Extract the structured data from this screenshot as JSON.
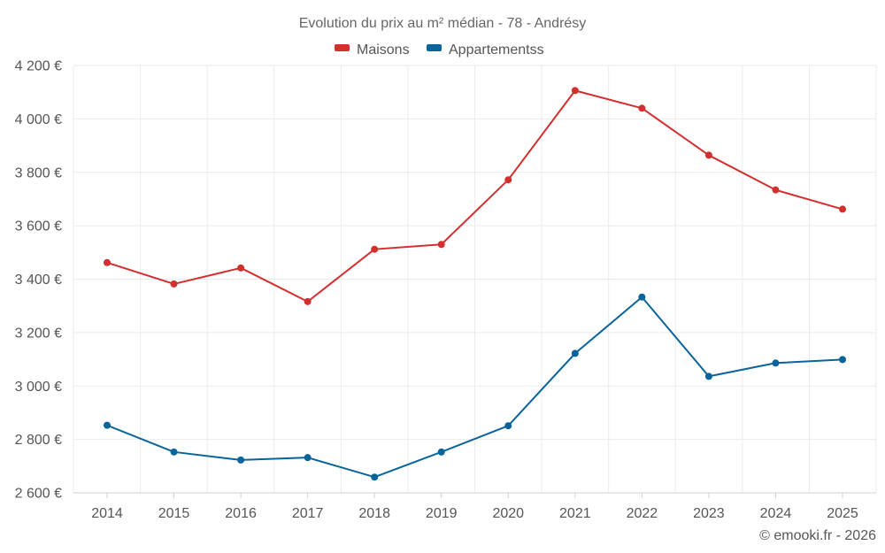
{
  "chart_data": {
    "type": "line",
    "title": "Evolution du prix au m² médian - 78 - Andrésy",
    "categories": [
      "2014",
      "2015",
      "2016",
      "2017",
      "2018",
      "2019",
      "2020",
      "2021",
      "2022",
      "2023",
      "2024",
      "2025"
    ],
    "series": [
      {
        "name": "Maisons",
        "color": "#d32f2f",
        "values": [
          3462,
          3382,
          3442,
          3316,
          3512,
          3530,
          3772,
          4106,
          4040,
          3864,
          3734,
          3662
        ]
      },
      {
        "name": "Appartementss",
        "color": "#08649a",
        "values": [
          2853,
          2753,
          2723,
          2732,
          2659,
          2753,
          2851,
          3122,
          3333,
          3036,
          3086,
          3099
        ]
      }
    ],
    "ylim": [
      2600,
      4200
    ],
    "yticks": [
      2600,
      2800,
      3000,
      3200,
      3400,
      3600,
      3800,
      4000,
      4200
    ],
    "ytick_labels": [
      "2 600 €",
      "2 800 €",
      "3 000 €",
      "3 200 €",
      "3 400 €",
      "3 600 €",
      "3 800 €",
      "4 000 €",
      "4 200 €"
    ],
    "xlabel": "",
    "ylabel": "",
    "grid": true,
    "legend_position": "top-center"
  },
  "footer": "© emooki.fr - 2026"
}
